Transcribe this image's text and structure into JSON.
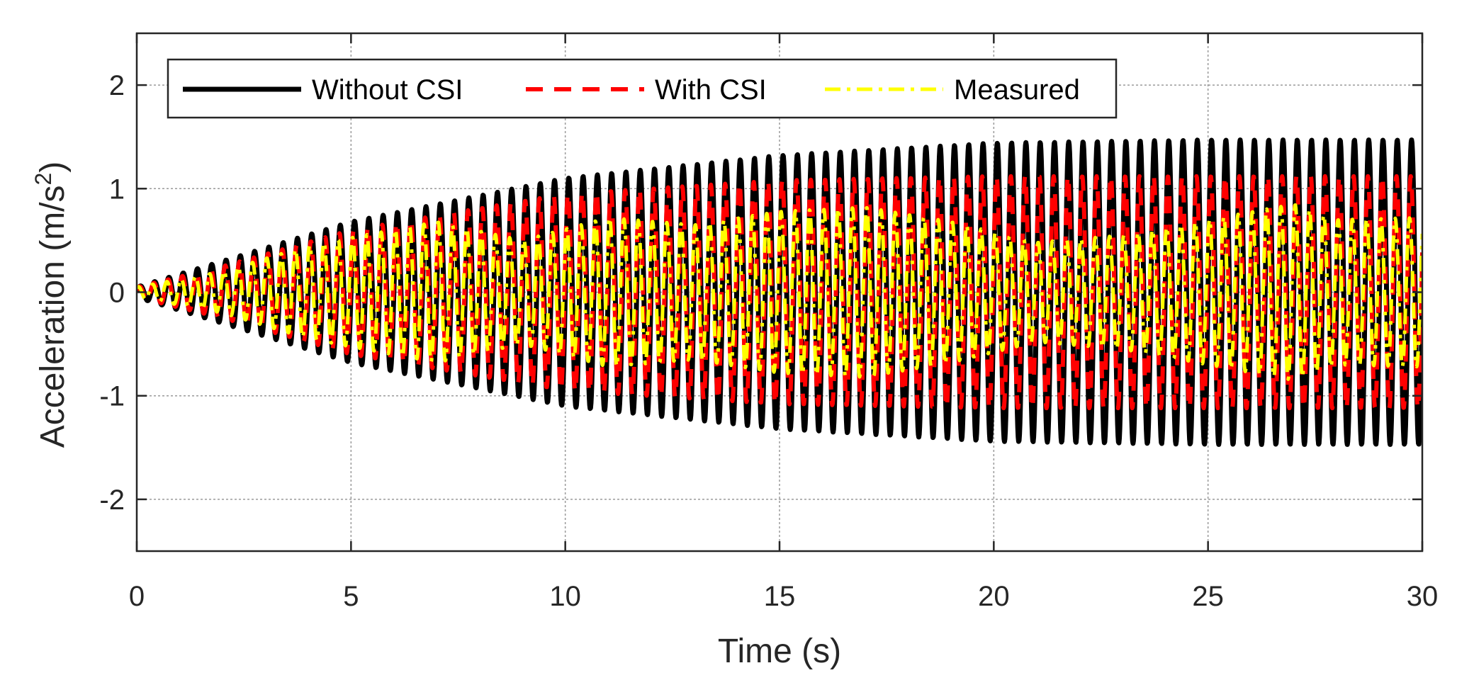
{
  "chart_data": {
    "type": "line",
    "title": "",
    "xlabel": "Time (s)",
    "ylabel_main": "Acceleration (m/s",
    "ylabel_sup": "2",
    "ylabel_close": ")",
    "xlim": [
      0,
      30
    ],
    "ylim": [
      -2.5,
      2.5
    ],
    "xticks": [
      0,
      5,
      10,
      15,
      20,
      25,
      30
    ],
    "xtick_labels": [
      "0",
      "5",
      "10",
      "15",
      "20",
      "25",
      "30"
    ],
    "yticks": [
      -2,
      -1,
      0,
      1,
      2
    ],
    "ytick_labels": [
      "-2",
      "-1",
      "0",
      "1",
      "2"
    ],
    "grid": true,
    "legend_position": "top-left",
    "frequency_hz": 3.0,
    "series": [
      {
        "name": "Without CSI",
        "color": "#000000",
        "style": "solid",
        "envelope_t": [
          0,
          2,
          5,
          10,
          15,
          20,
          25,
          30
        ],
        "envelope_amp": [
          0.05,
          0.3,
          0.68,
          1.1,
          1.32,
          1.44,
          1.47,
          1.47
        ]
      },
      {
        "name": "With CSI",
        "color": "#ff0000",
        "style": "dashed",
        "envelope_t": [
          0,
          2,
          5,
          10,
          15,
          20,
          25,
          30
        ],
        "envelope_amp": [
          0.05,
          0.25,
          0.6,
          0.95,
          1.08,
          1.12,
          1.12,
          1.12
        ]
      },
      {
        "name": "Measured",
        "color": "#ffff00",
        "style": "dashdot",
        "envelope_t": [
          0,
          2,
          4,
          7,
          9,
          11,
          13,
          15,
          17,
          19,
          21,
          23,
          25,
          27,
          28,
          30
        ],
        "envelope_amp": [
          0.05,
          0.2,
          0.45,
          0.68,
          0.5,
          0.72,
          0.65,
          0.78,
          0.82,
          0.68,
          0.48,
          0.55,
          0.7,
          0.85,
          0.7,
          0.72
        ]
      }
    ]
  }
}
